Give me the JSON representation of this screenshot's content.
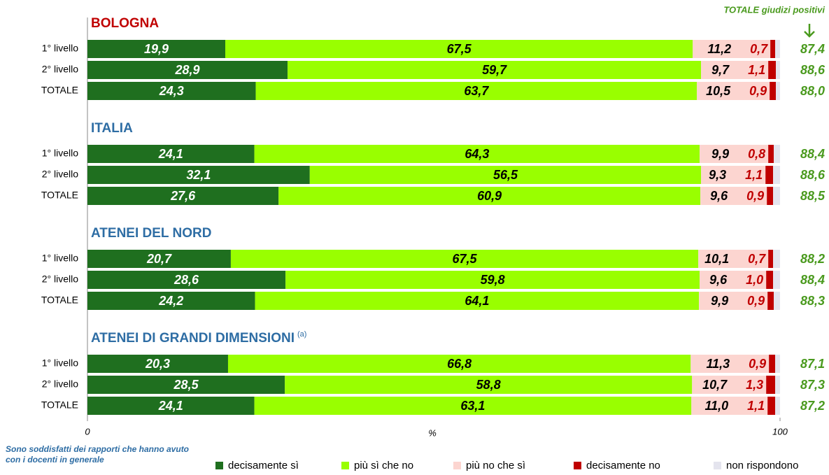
{
  "chart_data": {
    "type": "stacked_bar_h",
    "categories": [
      "1° livello",
      "2° livello",
      "TOTALE"
    ],
    "series": [
      {
        "name": "decisamente sì",
        "color": "#1f6f1f"
      },
      {
        "name": "più sì che no",
        "color": "#99ff00"
      },
      {
        "name": "più no che sì",
        "color": "#fcd5d0"
      },
      {
        "name": "decisamente no",
        "color": "#c00000"
      },
      {
        "name": "non rispondono",
        "color": "#e4e4ee"
      }
    ],
    "groups": [
      {
        "title": "BOLOGNA",
        "title_color": "#c00000",
        "values": [
          [
            19.9,
            67.5,
            11.2,
            0.7,
            0.7
          ],
          [
            28.9,
            59.7,
            9.7,
            1.1,
            0.6
          ],
          [
            24.3,
            63.7,
            10.5,
            0.9,
            0.6
          ]
        ],
        "value_labels": [
          [
            "19,9",
            "67,5",
            "11,2",
            "0,7",
            null
          ],
          [
            "28,9",
            "59,7",
            "9,7",
            "1,1",
            null
          ],
          [
            "24,3",
            "63,7",
            "10,5",
            "0,9",
            null
          ]
        ],
        "totals": [
          87.4,
          88.6,
          88.0
        ],
        "total_labels": [
          "87,4",
          "88,6",
          "88,0"
        ]
      },
      {
        "title": "ITALIA",
        "title_color": "#2e6da4",
        "values": [
          [
            24.1,
            64.3,
            9.9,
            0.8,
            0.9
          ],
          [
            32.1,
            56.5,
            9.3,
            1.1,
            1.0
          ],
          [
            27.6,
            60.9,
            9.6,
            0.9,
            1.0
          ]
        ],
        "value_labels": [
          [
            "24,1",
            "64,3",
            "9,9",
            "0,8",
            null
          ],
          [
            "32,1",
            "56,5",
            "9,3",
            "1,1",
            null
          ],
          [
            "27,6",
            "60,9",
            "9,6",
            "0,9",
            null
          ]
        ],
        "totals": [
          88.4,
          88.6,
          88.5
        ],
        "total_labels": [
          "88,4",
          "88,6",
          "88,5"
        ]
      },
      {
        "title": "ATENEI DEL NORD",
        "title_color": "#2e6da4",
        "values": [
          [
            20.7,
            67.5,
            10.1,
            0.7,
            1.0
          ],
          [
            28.6,
            59.8,
            9.6,
            1.0,
            1.0
          ],
          [
            24.2,
            64.1,
            9.9,
            0.9,
            0.9
          ]
        ],
        "value_labels": [
          [
            "20,7",
            "67,5",
            "10,1",
            "0,7",
            null
          ],
          [
            "28,6",
            "59,8",
            "9,6",
            "1,0",
            null
          ],
          [
            "24,2",
            "64,1",
            "9,9",
            "0,9",
            null
          ]
        ],
        "totals": [
          88.2,
          88.4,
          88.3
        ],
        "total_labels": [
          "88,2",
          "88,4",
          "88,3"
        ]
      },
      {
        "title": "ATENEI DI GRANDI DIMENSIONI",
        "note": "(a)",
        "title_color": "#2e6da4",
        "values": [
          [
            20.3,
            66.8,
            11.3,
            0.9,
            0.7
          ],
          [
            28.5,
            58.8,
            10.7,
            1.3,
            0.7
          ],
          [
            24.1,
            63.1,
            11.0,
            1.1,
            0.7
          ]
        ],
        "value_labels": [
          [
            "20,3",
            "66,8",
            "11,3",
            "0,9",
            null
          ],
          [
            "28,5",
            "58,8",
            "10,7",
            "1,3",
            null
          ],
          [
            "24,1",
            "63,1",
            "11,0",
            "1,1",
            null
          ]
        ],
        "totals": [
          87.1,
          87.3,
          87.2
        ],
        "total_labels": [
          "87,1",
          "87,3",
          "87,2"
        ]
      }
    ],
    "totals_title": "TOTALE giudizi positivi",
    "xlim": [
      0,
      100
    ],
    "xticks": [
      0,
      100
    ],
    "xlabel": "%",
    "footnote": [
      "Sono soddisfatti dei rapporti che hanno avuto",
      "con i docenti in generale"
    ]
  }
}
